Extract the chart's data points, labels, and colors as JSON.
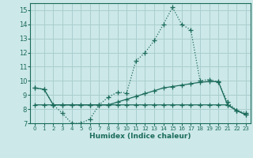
{
  "xlabel": "Humidex (Indice chaleur)",
  "xlim": [
    -0.5,
    23.5
  ],
  "ylim": [
    7,
    15.5
  ],
  "yticks": [
    7,
    8,
    9,
    10,
    11,
    12,
    13,
    14,
    15
  ],
  "xticks": [
    0,
    1,
    2,
    3,
    4,
    5,
    6,
    7,
    8,
    9,
    10,
    11,
    12,
    13,
    14,
    15,
    16,
    17,
    18,
    19,
    20,
    21,
    22,
    23
  ],
  "bg_color": "#cce8e8",
  "grid_color": "#aacece",
  "line_color": "#1a6b5a",
  "line1_x": [
    0,
    1,
    2,
    3,
    4,
    5,
    6,
    7,
    8,
    9,
    10,
    11,
    12,
    13,
    14,
    15,
    16,
    17,
    18,
    19,
    20,
    21,
    22,
    23
  ],
  "line1_y": [
    9.5,
    9.4,
    8.3,
    7.7,
    7.0,
    7.0,
    7.3,
    8.3,
    8.85,
    9.2,
    9.15,
    11.4,
    12.0,
    12.85,
    14.0,
    15.2,
    14.0,
    13.6,
    10.0,
    10.1,
    9.9,
    8.5,
    7.9,
    7.75
  ],
  "line2_x": [
    0,
    1,
    2,
    3,
    4,
    5,
    6,
    7,
    8,
    9,
    10,
    11,
    12,
    13,
    14,
    15,
    16,
    17,
    18,
    19,
    20,
    21,
    22,
    23
  ],
  "line2_y": [
    9.5,
    9.4,
    8.3,
    8.3,
    8.3,
    8.3,
    8.3,
    8.3,
    8.3,
    8.5,
    8.7,
    8.9,
    9.1,
    9.3,
    9.5,
    9.6,
    9.7,
    9.8,
    9.9,
    9.95,
    9.95,
    8.3,
    7.9,
    7.6
  ],
  "line3_x": [
    0,
    1,
    2,
    3,
    4,
    5,
    6,
    7,
    8,
    9,
    10,
    11,
    12,
    13,
    14,
    15,
    16,
    17,
    18,
    19,
    20,
    21,
    22,
    23
  ],
  "line3_y": [
    8.3,
    8.3,
    8.3,
    8.3,
    8.3,
    8.3,
    8.3,
    8.3,
    8.3,
    8.3,
    8.3,
    8.3,
    8.3,
    8.3,
    8.3,
    8.3,
    8.3,
    8.3,
    8.3,
    8.3,
    8.3,
    8.3,
    7.9,
    7.6
  ]
}
